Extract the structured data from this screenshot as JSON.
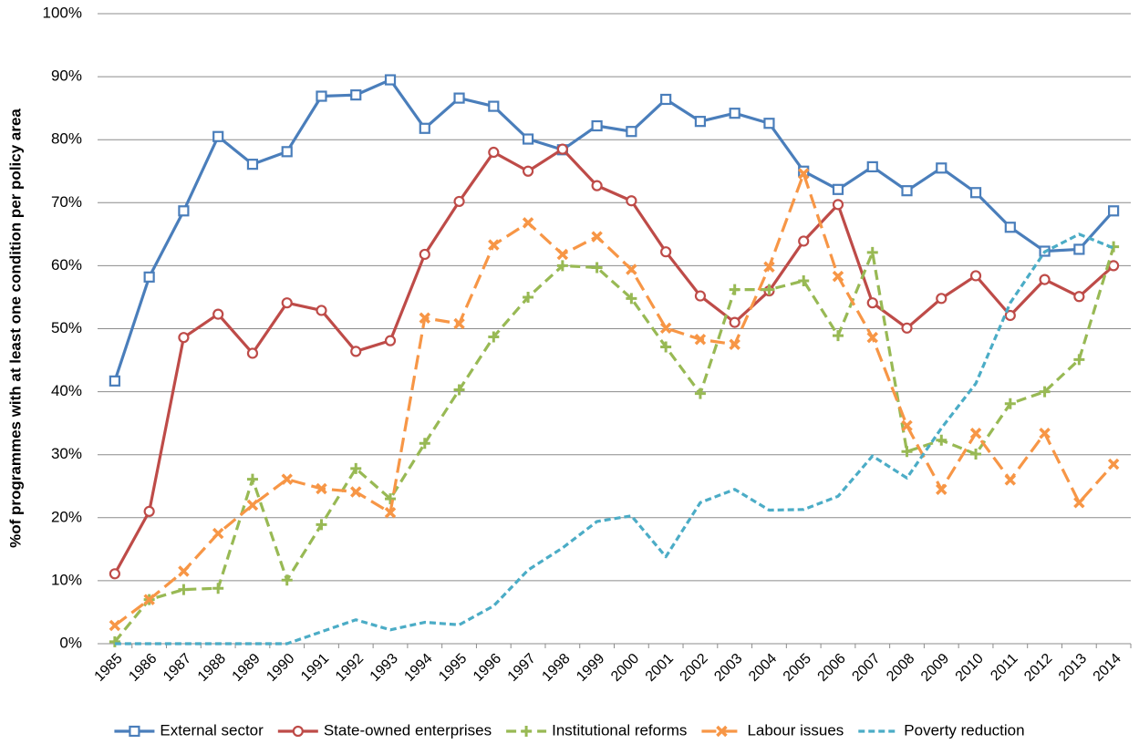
{
  "chart_data": {
    "type": "line",
    "y_label": "%of programmes with at least one condition per policy area",
    "categories": [
      "1985",
      "1986",
      "1987",
      "1988",
      "1989",
      "1990",
      "1991",
      "1992",
      "1993",
      "1994",
      "1995",
      "1996",
      "1997",
      "1998",
      "1999",
      "2000",
      "2001",
      "2002",
      "2003",
      "2004",
      "2005",
      "2006",
      "2007",
      "2008",
      "2009",
      "2010",
      "2011",
      "2012",
      "2013",
      "2014"
    ],
    "ylim": [
      0,
      100
    ],
    "yticks": [
      {
        "value": 0,
        "label": "0%"
      },
      {
        "value": 10,
        "label": "10%"
      },
      {
        "value": 20,
        "label": "20%"
      },
      {
        "value": 30,
        "label": "30%"
      },
      {
        "value": 40,
        "label": "40%"
      },
      {
        "value": 50,
        "label": "50%"
      },
      {
        "value": 60,
        "label": "60%"
      },
      {
        "value": 70,
        "label": "70%"
      },
      {
        "value": 80,
        "label": "80%"
      },
      {
        "value": 90,
        "label": "90%"
      },
      {
        "value": 100,
        "label": "100%"
      }
    ],
    "grid": true,
    "legend": "bottom",
    "series": [
      {
        "name": "External sector",
        "color": "#4a7ebb",
        "marker": "square",
        "dash": "solid",
        "values": [
          41.7,
          58.2,
          68.7,
          80.5,
          76.1,
          78.1,
          86.9,
          87.1,
          89.5,
          81.8,
          86.6,
          85.3,
          80.1,
          78.4,
          82.2,
          81.3,
          86.4,
          82.9,
          84.2,
          82.6,
          75.0,
          72.1,
          75.7,
          71.9,
          75.5,
          71.6,
          66.1,
          62.3,
          62.6,
          68.7
        ]
      },
      {
        "name": "State-owned enterprises",
        "color": "#be4b48",
        "marker": "circle",
        "dash": "solid",
        "values": [
          11.1,
          21.0,
          48.6,
          52.3,
          46.1,
          54.1,
          52.9,
          46.4,
          48.1,
          61.8,
          70.2,
          78.0,
          75.0,
          78.5,
          72.7,
          70.3,
          62.2,
          55.2,
          51.0,
          56.0,
          63.9,
          69.7,
          54.1,
          50.1,
          54.8,
          58.4,
          52.1,
          57.8,
          55.1,
          60.0
        ]
      },
      {
        "name": "Institutional reforms",
        "color": "#98b954",
        "marker": "plus",
        "dash": "dashed",
        "values": [
          0.3,
          7.0,
          8.6,
          8.8,
          26.1,
          10.1,
          18.9,
          27.8,
          23.0,
          31.8,
          40.3,
          48.7,
          55.0,
          60.0,
          59.7,
          54.8,
          47.1,
          39.7,
          56.2,
          56.2,
          57.6,
          48.9,
          62.1,
          30.5,
          32.3,
          30.1,
          38.1,
          40.0,
          45.1,
          63.0
        ]
      },
      {
        "name": "Labour issues",
        "color": "#f79646",
        "marker": "x",
        "dash": "long-dashed",
        "values": [
          2.9,
          7.0,
          11.5,
          17.5,
          22.0,
          26.1,
          24.6,
          24.1,
          20.8,
          51.7,
          50.8,
          63.3,
          66.8,
          61.8,
          64.6,
          59.4,
          50.1,
          48.3,
          47.5,
          59.8,
          74.6,
          58.3,
          48.6,
          34.6,
          24.5,
          33.4,
          26.0,
          33.4,
          22.4,
          28.5
        ]
      },
      {
        "name": "Poverty reduction",
        "color": "#4bacc6",
        "marker": "none",
        "dash": "short-dashed",
        "values": [
          0,
          0,
          0,
          0,
          0,
          0,
          1.9,
          3.8,
          2.2,
          3.4,
          3.0,
          6.0,
          11.7,
          15.2,
          19.4,
          20.3,
          13.8,
          22.4,
          24.5,
          21.2,
          21.3,
          23.4,
          29.8,
          26.3,
          34.2,
          41.3,
          54.1,
          62.2,
          65.0,
          62.8
        ]
      }
    ]
  }
}
